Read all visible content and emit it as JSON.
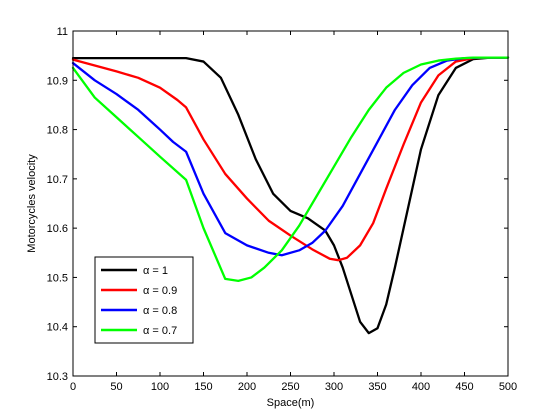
{
  "chart_data": {
    "type": "line",
    "xlabel": "Space(m)",
    "ylabel": "Motorcycles velocity",
    "xlim": [
      0,
      500
    ],
    "ylim": [
      10.3,
      11
    ],
    "xticks": [
      0,
      50,
      100,
      150,
      200,
      250,
      300,
      350,
      400,
      450,
      500
    ],
    "yticks": [
      10.3,
      10.4,
      10.5,
      10.6,
      10.7,
      10.8,
      10.9,
      11
    ],
    "xtick_labels": [
      "0",
      "50",
      "100",
      "150",
      "200",
      "250",
      "300",
      "350",
      "400",
      "450",
      "500"
    ],
    "ytick_labels": [
      "10.3",
      "10.4",
      "10.5",
      "10.6",
      "10.7",
      "10.8",
      "10.9",
      "11"
    ],
    "grid": false,
    "legend_position": "bottom-left",
    "series": [
      {
        "name": "α = 1",
        "color": "#000000",
        "x": [
          0,
          100,
          130,
          150,
          170,
          190,
          210,
          230,
          250,
          270,
          290,
          300,
          310,
          320,
          330,
          340,
          350,
          360,
          370,
          380,
          390,
          400,
          420,
          440,
          460,
          480,
          500
        ],
        "y": [
          10.945,
          10.945,
          10.945,
          10.938,
          10.905,
          10.83,
          10.74,
          10.67,
          10.635,
          10.62,
          10.595,
          10.565,
          10.52,
          10.465,
          10.41,
          10.387,
          10.397,
          10.445,
          10.52,
          10.6,
          10.68,
          10.76,
          10.87,
          10.925,
          10.943,
          10.946,
          10.946
        ]
      },
      {
        "name": "α = 0.9",
        "color": "#ff0000",
        "x": [
          0,
          25,
          50,
          75,
          100,
          120,
          130,
          150,
          175,
          200,
          225,
          250,
          275,
          295,
          305,
          315,
          330,
          345,
          360,
          380,
          400,
          420,
          440,
          460,
          480,
          500
        ],
        "y": [
          10.942,
          10.93,
          10.918,
          10.905,
          10.885,
          10.86,
          10.845,
          10.78,
          10.71,
          10.66,
          10.615,
          10.585,
          10.557,
          10.538,
          10.535,
          10.54,
          10.565,
          10.61,
          10.68,
          10.77,
          10.855,
          10.91,
          10.938,
          10.945,
          10.946,
          10.946
        ]
      },
      {
        "name": "α = 0.8",
        "color": "#0000ff",
        "x": [
          0,
          25,
          50,
          75,
          100,
          115,
          130,
          150,
          175,
          200,
          225,
          240,
          260,
          275,
          290,
          310,
          330,
          350,
          370,
          390,
          410,
          430,
          450,
          470,
          500
        ],
        "y": [
          10.935,
          10.9,
          10.872,
          10.84,
          10.8,
          10.775,
          10.755,
          10.67,
          10.59,
          10.565,
          10.55,
          10.545,
          10.555,
          10.57,
          10.595,
          10.645,
          10.71,
          10.775,
          10.84,
          10.89,
          10.925,
          10.94,
          10.945,
          10.946,
          10.946
        ]
      },
      {
        "name": "α = 0.7",
        "color": "#00ff00",
        "x": [
          0,
          25,
          50,
          75,
          100,
          130,
          150,
          175,
          190,
          205,
          220,
          240,
          260,
          280,
          300,
          320,
          340,
          360,
          380,
          400,
          420,
          440,
          460,
          480,
          500
        ],
        "y": [
          10.925,
          10.865,
          10.825,
          10.785,
          10.745,
          10.698,
          10.6,
          10.497,
          10.493,
          10.5,
          10.52,
          10.555,
          10.605,
          10.665,
          10.725,
          10.785,
          10.84,
          10.885,
          10.915,
          10.932,
          10.94,
          10.944,
          10.946,
          10.946,
          10.946
        ]
      }
    ]
  }
}
